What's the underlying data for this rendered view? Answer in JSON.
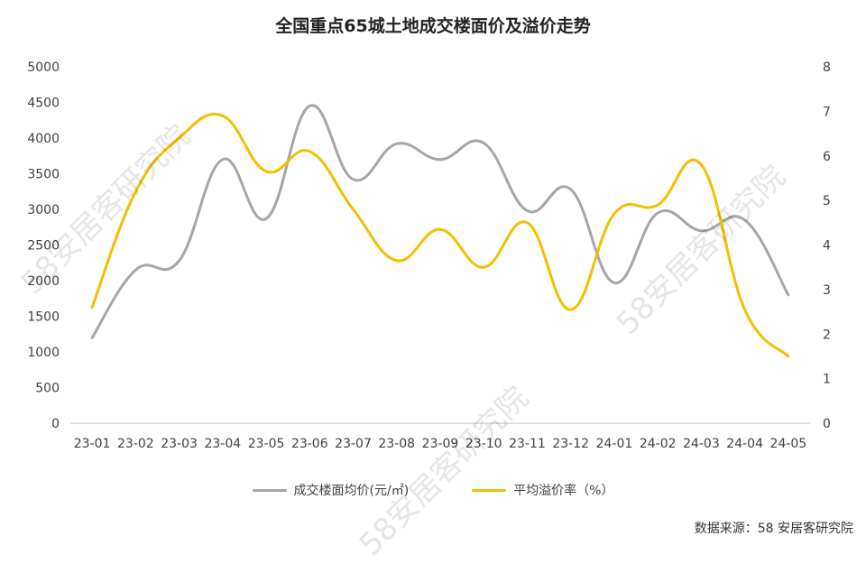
{
  "title": "全国重点65城土地成交楼面价及溢价走势",
  "source_note": "数据来源：58 安居客研究院",
  "watermark_text": "58安居客研究院",
  "colors": {
    "gray_series": "#a6a6a6",
    "yellow_series": "#f5be00",
    "axis": "#bfbfbf",
    "text": "#404040"
  },
  "chart_data": {
    "type": "line",
    "title": "全国重点65城土地成交楼面价及溢价走势",
    "categories": [
      "23-01",
      "23-02",
      "23-03",
      "23-04",
      "23-05",
      "23-06",
      "23-07",
      "23-08",
      "23-09",
      "23-10",
      "23-11",
      "23-12",
      "24-01",
      "24-02",
      "24-03",
      "24-04",
      "24-05"
    ],
    "left_axis": {
      "ylim": [
        0,
        5000
      ],
      "ticks": [
        0,
        500,
        1000,
        1500,
        2000,
        2500,
        3000,
        3500,
        4000,
        4500,
        5000
      ]
    },
    "right_axis": {
      "ylim": [
        0,
        8
      ],
      "ticks": [
        0,
        1,
        2,
        3,
        4,
        5,
        6,
        7,
        8
      ]
    },
    "series": [
      {
        "name": "成交楼面均价(元/㎡)",
        "axis": "left",
        "color": "#a6a6a6",
        "values": [
          1200,
          2150,
          2280,
          3700,
          2870,
          4450,
          3420,
          3920,
          3700,
          3930,
          2980,
          3280,
          1970,
          2950,
          2700,
          2850,
          1800
        ]
      },
      {
        "name": "平均溢价率（%）",
        "axis": "right",
        "color": "#f5be00",
        "values": [
          2.6,
          5.2,
          6.4,
          6.9,
          5.65,
          6.1,
          4.8,
          3.65,
          4.35,
          3.5,
          4.5,
          2.55,
          4.7,
          4.9,
          5.8,
          2.55,
          1.5
        ]
      }
    ],
    "grid": false,
    "legend_position": "bottom"
  }
}
